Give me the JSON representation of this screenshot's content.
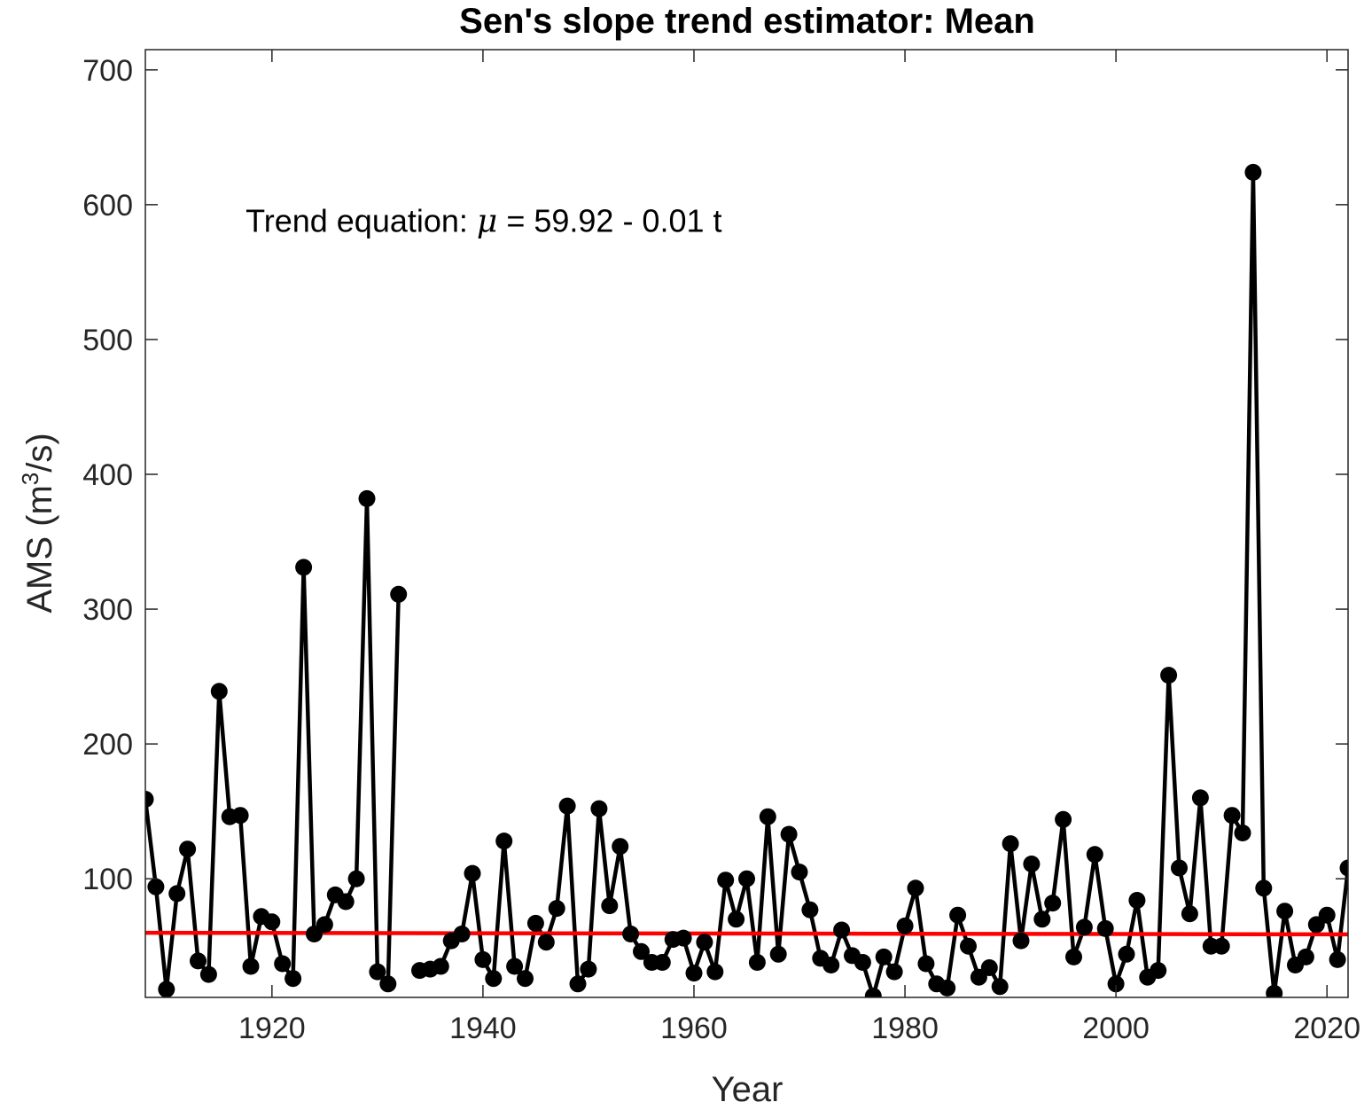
{
  "chart_data": {
    "type": "line",
    "title": "Sen's slope trend estimator: Mean",
    "xlabel": "Year",
    "ylabel": "AMS (m³/s)",
    "ylabel_parts": {
      "pre": "AMS (m",
      "sup": "3",
      "post": "/s)"
    },
    "xlim": [
      1908,
      2022
    ],
    "ylim": [
      12,
      715
    ],
    "xticks": [
      1920,
      1940,
      1960,
      1980,
      2000,
      2020
    ],
    "yticks": [
      100,
      200,
      300,
      400,
      500,
      600,
      700
    ],
    "grid": false,
    "annotation": {
      "pre": "Trend equation: ",
      "symbol": "μ",
      "post": " = 59.92 - 0.01 t",
      "x": 1917.5,
      "y": 580
    },
    "series": [
      {
        "color": "#000000",
        "marker": "circle",
        "x": [
          1908,
          1909,
          1910,
          1911,
          1912,
          1913,
          1914,
          1915,
          1916,
          1917,
          1918,
          1919,
          1920,
          1921,
          1922,
          1923,
          1924,
          1925,
          1926,
          1927,
          1928,
          1929,
          1930,
          1931,
          1932
        ],
        "y": [
          159,
          94,
          18,
          89,
          122,
          39,
          29,
          239,
          146,
          147,
          35,
          72,
          68,
          37,
          26,
          331,
          59,
          66,
          88,
          83,
          100,
          382,
          31,
          22,
          311
        ]
      },
      {
        "color": "#000000",
        "marker": "circle",
        "x": [
          1934,
          1935,
          1936,
          1937,
          1938,
          1939,
          1940,
          1941,
          1942,
          1943,
          1944,
          1945,
          1946,
          1947,
          1948,
          1949,
          1950,
          1951,
          1952,
          1953,
          1954,
          1955,
          1956,
          1957,
          1958,
          1959,
          1960,
          1961,
          1962,
          1963,
          1964,
          1965,
          1966,
          1967,
          1968,
          1969,
          1970,
          1971,
          1972,
          1973,
          1974,
          1975,
          1976,
          1977,
          1978,
          1979,
          1980,
          1981,
          1982,
          1983,
          1984,
          1985,
          1986,
          1987,
          1988,
          1989,
          1990,
          1991,
          1992,
          1993,
          1994,
          1995,
          1996,
          1997,
          1998,
          1999,
          2000,
          2001,
          2002,
          2003,
          2004,
          2005,
          2006,
          2007,
          2008,
          2009,
          2010,
          2011,
          2012,
          2013,
          2014,
          2015,
          2016,
          2017,
          2018,
          2019,
          2020,
          2021,
          2022
        ],
        "y": [
          32,
          33,
          35,
          54,
          59,
          104,
          40,
          26,
          128,
          35,
          26,
          67,
          53,
          78,
          154,
          22,
          33,
          152,
          80,
          124,
          59,
          46,
          38,
          38,
          55,
          56,
          30,
          53,
          31,
          99,
          70,
          100,
          38,
          146,
          44,
          133,
          105,
          77,
          41,
          36,
          62,
          43,
          38,
          13,
          42,
          31,
          65,
          93,
          37,
          22,
          19,
          73,
          50,
          27,
          34,
          20,
          126,
          54,
          111,
          70,
          82,
          144,
          42,
          64,
          118,
          63,
          22,
          44,
          84,
          27,
          32,
          251,
          108,
          74,
          160,
          50,
          50,
          147,
          134,
          624,
          93,
          15,
          76,
          36,
          42,
          66,
          73,
          40,
          108
        ]
      }
    ],
    "trend": {
      "color": "#ff0000",
      "x": [
        1908,
        2022
      ],
      "y": [
        59.92,
        58.78
      ]
    }
  }
}
